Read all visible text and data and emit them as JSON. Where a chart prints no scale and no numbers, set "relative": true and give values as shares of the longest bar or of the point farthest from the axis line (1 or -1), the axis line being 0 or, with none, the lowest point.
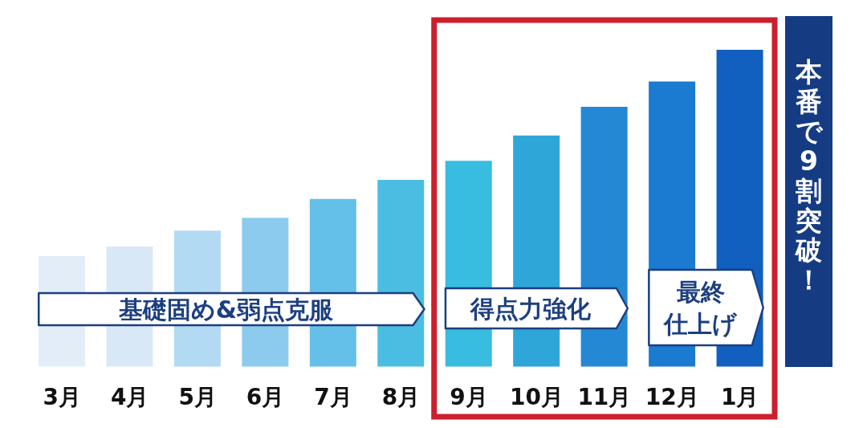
{
  "chart_data": {
    "type": "bar",
    "relative": true,
    "categories": [
      "3月",
      "4月",
      "5月",
      "6月",
      "7月",
      "8月",
      "9月",
      "10月",
      "11月",
      "12月",
      "1月"
    ],
    "values": [
      0.35,
      0.38,
      0.43,
      0.47,
      0.53,
      0.59,
      0.65,
      0.73,
      0.82,
      0.9,
      1
    ],
    "colors": [
      "#e2edf8",
      "#d9e8f6",
      "#b3daf3",
      "#8ccbee",
      "#64c0e8",
      "#4bbde3",
      "#38bcdf",
      "#2ea6d8",
      "#2588d4",
      "#1a7bd0",
      "#115fbf"
    ],
    "annotations": [
      "基礎固め&弱点克服",
      "得点力強化",
      "最終仕上げ",
      "本番で9割突破！"
    ]
  }
}
